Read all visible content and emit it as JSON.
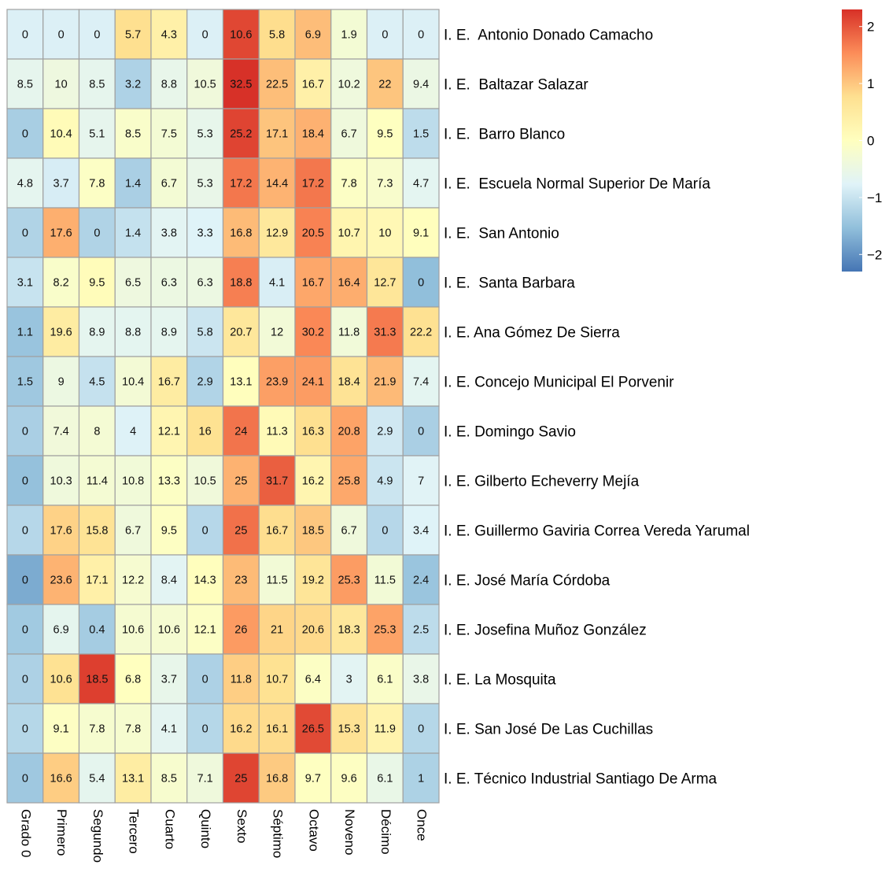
{
  "chart_data": {
    "type": "heatmap",
    "title": "",
    "xlabel": "",
    "ylabel": "",
    "columns": [
      "Grado 0",
      "Primero",
      "Segundo",
      "Tercero",
      "Cuarto",
      "Quinto",
      "Sexto",
      "Séptimo",
      "Octavo",
      "Noveno",
      "Décimo",
      "Once"
    ],
    "rows": [
      "I. E.  Antonio Donado Camacho",
      "I. E.  Baltazar Salazar",
      "I. E.  Barro Blanco",
      "I. E.  Escuela Normal Superior De María",
      "I. E.  San Antonio",
      "I. E.  Santa Barbara",
      "I. E. Ana Gómez De Sierra",
      "I. E. Concejo Municipal El Porvenir",
      "I. E. Domingo Savio",
      "I. E. Gilberto Echeverry Mejía",
      "I. E. Guillermo Gaviria Correa Vereda Yarumal",
      "I. E. José María Córdoba",
      "I. E. Josefina Muñoz González",
      "I. E. La Mosquita",
      "I. E. San José De Las Cuchillas",
      "I. E. Técnico Industrial Santiago De Arma"
    ],
    "values": [
      [
        0,
        0,
        0,
        5.7,
        4.3,
        0,
        10.6,
        5.8,
        6.9,
        1.9,
        0,
        0
      ],
      [
        8.5,
        10,
        8.5,
        3.2,
        8.8,
        10.5,
        32.5,
        22.5,
        16.7,
        10.2,
        22,
        9.4
      ],
      [
        0,
        10.4,
        5.1,
        8.5,
        7.5,
        5.3,
        25.2,
        17.1,
        18.4,
        6.7,
        9.5,
        1.5
      ],
      [
        4.8,
        3.7,
        7.8,
        1.4,
        6.7,
        5.3,
        17.2,
        14.4,
        17.2,
        7.8,
        7.3,
        4.7
      ],
      [
        0,
        17.6,
        0,
        1.4,
        3.8,
        3.3,
        16.8,
        12.9,
        20.5,
        10.7,
        10,
        9.1
      ],
      [
        3.1,
        8.2,
        9.5,
        6.5,
        6.3,
        6.3,
        18.8,
        4.1,
        16.7,
        16.4,
        12.7,
        0
      ],
      [
        1.1,
        19.6,
        8.9,
        8.8,
        8.9,
        5.8,
        20.7,
        12,
        30.2,
        11.8,
        31.3,
        22.2
      ],
      [
        1.5,
        9,
        4.5,
        10.4,
        16.7,
        2.9,
        13.1,
        23.9,
        24.1,
        18.4,
        21.9,
        7.4
      ],
      [
        0,
        7.4,
        8,
        4,
        12.1,
        16,
        24,
        11.3,
        16.3,
        20.8,
        2.9,
        0
      ],
      [
        0,
        10.3,
        11.4,
        10.8,
        13.3,
        10.5,
        25,
        31.7,
        16.2,
        25.8,
        4.9,
        7
      ],
      [
        0,
        17.6,
        15.8,
        6.7,
        9.5,
        0,
        25,
        16.7,
        18.5,
        6.7,
        0,
        3.4
      ],
      [
        0,
        23.6,
        17.1,
        12.2,
        8.4,
        14.3,
        23,
        11.5,
        19.2,
        25.3,
        11.5,
        2.4
      ],
      [
        0,
        6.9,
        0.4,
        10.6,
        10.6,
        12.1,
        26,
        21,
        20.6,
        18.3,
        25.3,
        2.5
      ],
      [
        0,
        10.6,
        18.5,
        6.8,
        3.7,
        0,
        11.8,
        10.7,
        6.4,
        3,
        6.1,
        3.8
      ],
      [
        0,
        9.1,
        7.8,
        7.8,
        4.1,
        0,
        16.2,
        16.1,
        26.5,
        15.3,
        11.9,
        0
      ],
      [
        0,
        16.6,
        5.4,
        13.1,
        8.5,
        7.1,
        25,
        16.8,
        9.7,
        9.6,
        6.1,
        1
      ]
    ],
    "scaling": "row z-score",
    "legend": {
      "position": "top-right",
      "range": [
        -2.3,
        2.3
      ],
      "ticks": [
        2,
        1,
        0,
        -1,
        -2
      ],
      "tick_labels": [
        "2",
        "1",
        "0",
        "−1",
        "−2"
      ],
      "colors": [
        "#4575b4",
        "#91bfdb",
        "#e0f3f8",
        "#ffffbf",
        "#fee090",
        "#fc8d59",
        "#d73027"
      ]
    },
    "grid": true,
    "cell_border_color": "#a0a0a0"
  }
}
